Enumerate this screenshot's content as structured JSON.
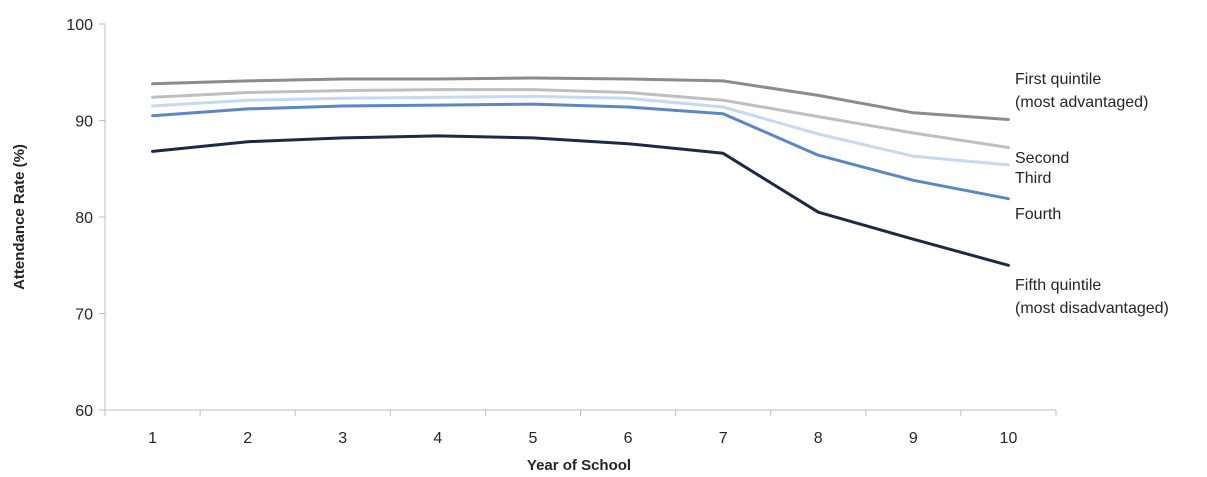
{
  "chart_data": {
    "type": "line",
    "title": "",
    "xlabel": "Year of School",
    "ylabel": "Attendance Rate (%)",
    "x": [
      1,
      2,
      3,
      4,
      5,
      6,
      7,
      8,
      9,
      10
    ],
    "ylim": [
      60,
      100
    ],
    "yticks": [
      60,
      70,
      80,
      90,
      100
    ],
    "grid": false,
    "legend": "direct labels at right end of lines",
    "series": [
      {
        "name": "First quintile (most advantaged)",
        "label_lines": [
          "First quintile",
          "(most advantaged)"
        ],
        "color": "#8c8c8c",
        "values": [
          93.8,
          94.1,
          94.3,
          94.3,
          94.4,
          94.3,
          94.1,
          92.6,
          90.8,
          90.1
        ]
      },
      {
        "name": "Second",
        "label_lines": [
          "Second"
        ],
        "color": "#bfbfbf",
        "values": [
          92.4,
          92.9,
          93.1,
          93.2,
          93.2,
          92.9,
          92.1,
          90.4,
          88.7,
          87.2
        ]
      },
      {
        "name": "Third",
        "label_lines": [
          "Third"
        ],
        "color": "#c5d9f1",
        "values": [
          91.5,
          92.1,
          92.3,
          92.4,
          92.5,
          92.3,
          91.4,
          88.6,
          86.3,
          85.4
        ]
      },
      {
        "name": "Fourth",
        "label_lines": [
          "Fourth"
        ],
        "color": "#5b87c6",
        "values": [
          90.5,
          91.2,
          91.5,
          91.6,
          91.7,
          91.4,
          90.7,
          86.4,
          83.8,
          81.9
        ]
      },
      {
        "name": "Fifth quintile (most disadvantaged)",
        "label_lines": [
          "Fifth quintile",
          "(most disadvantaged)"
        ],
        "color": "#1c2b45",
        "values": [
          86.8,
          87.8,
          88.2,
          88.4,
          88.2,
          87.6,
          86.6,
          80.5,
          77.7,
          75.0
        ]
      }
    ]
  }
}
